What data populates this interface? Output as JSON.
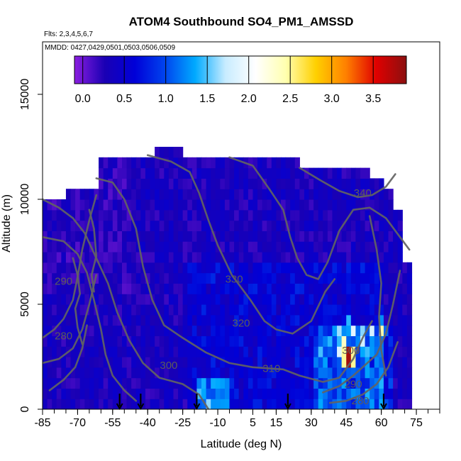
{
  "chart_data": {
    "type": "heatmap",
    "title": "ATOM4 Southbound SO4_PM1_AMSSD",
    "flights_text": "Flts: 2,3,4,5,6,7",
    "dates_text": "MMDD: 0427,0429,0501,0503,0506,0509",
    "xlabel": "Latitude (deg N)",
    "ylabel": "Altitude (m)",
    "xlim": [
      -85,
      85
    ],
    "ylim": [
      0,
      17500
    ],
    "x_ticks": [
      -85,
      -70,
      -55,
      -40,
      -25,
      -10,
      5,
      15,
      30,
      45,
      60,
      75
    ],
    "y_ticks": [
      0,
      5000,
      10000,
      15000
    ],
    "colorbar": {
      "range": [
        -0.1,
        3.9
      ],
      "ticks": [
        "0.0",
        "0.5",
        "1.0",
        "1.5",
        "2.0",
        "2.5",
        "3.0",
        "3.5"
      ],
      "tick_values": [
        0,
        0.5,
        1.0,
        1.5,
        2.0,
        2.5,
        3.0,
        3.5
      ],
      "colors": [
        "#8b1ee0",
        "#1a00b4",
        "#0000d8",
        "#0044ee",
        "#00aaff",
        "#c8ecff",
        "#ffffff",
        "#ffffb0",
        "#ffd000",
        "#ff8000",
        "#e00000",
        "#8b1010"
      ]
    },
    "contours": [
      {
        "label": "340",
        "lat": 52,
        "alt": 10300
      },
      {
        "label": "330",
        "lat": -3,
        "alt": 6200
      },
      {
        "label": "320",
        "lat": 0,
        "alt": 4100
      },
      {
        "label": "310",
        "lat": 13,
        "alt": 1950
      },
      {
        "label": "300",
        "lat": -31,
        "alt": 2100
      },
      {
        "label": "300",
        "lat": 47,
        "alt": 2800
      },
      {
        "label": "290",
        "lat": -76,
        "alt": 6100
      },
      {
        "label": "290",
        "lat": 48,
        "alt": 1200
      },
      {
        "label": "280",
        "lat": -76,
        "alt": 3500
      },
      {
        "label": "280",
        "lat": 51,
        "alt": 400
      }
    ],
    "profile_arrows_lat": [
      -52,
      -43,
      -19,
      20,
      61
    ],
    "hotspot": {
      "lat": 45,
      "alt": 2300,
      "value": 3.8
    }
  }
}
